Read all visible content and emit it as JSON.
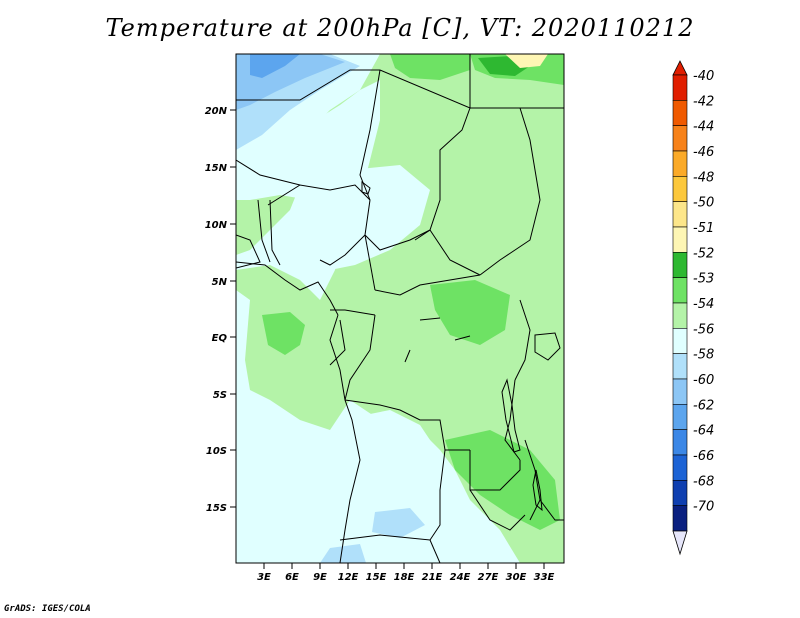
{
  "title": "Temperature at 200hPa [C], VT: 2020110212",
  "credit": "GrADS: IGES/COLA",
  "map": {
    "lat_labels": [
      "20N",
      "15N",
      "10N",
      "5N",
      "EQ",
      "5S",
      "10S",
      "15S"
    ],
    "lon_labels": [
      "3E",
      "6E",
      "9E",
      "12E",
      "15E",
      "18E",
      "21E",
      "24E",
      "27E",
      "30E",
      "33E"
    ]
  },
  "colorbar": {
    "levels": [
      "-40",
      "-42",
      "-44",
      "-46",
      "-48",
      "-50",
      "-51",
      "-52",
      "-53",
      "-54",
      "-56",
      "-58",
      "-60",
      "-62",
      "-64",
      "-66",
      "-68",
      "-70"
    ],
    "colors": [
      "#e01e00",
      "#f05a00",
      "#f7821a",
      "#fbaa28",
      "#fcc83c",
      "#fde68a",
      "#fef6b4",
      "#2eb831",
      "#6ee264",
      "#b4f3a8",
      "#e0ffff",
      "#b0e0fa",
      "#8cc6f5",
      "#5ca5ee",
      "#3b87e6",
      "#1c63d5",
      "#0f3fb0",
      "#0a2080"
    ],
    "under_color": "#0a1a78",
    "over_color": "#e01e00",
    "ocean_color": "#e0ffff"
  }
}
